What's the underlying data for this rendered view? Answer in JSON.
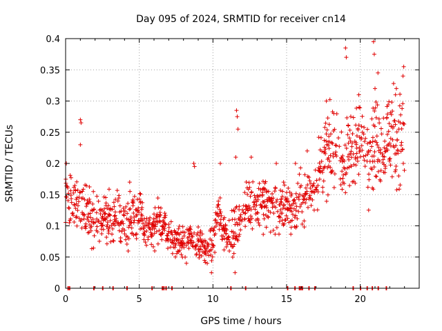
{
  "chart_data": {
    "type": "scatter",
    "title": "Day 095 of 2024, SRMTID for receiver cn14",
    "xlabel": "GPS time / hours",
    "ylabel": "SRMTID / TECUs",
    "xlim": [
      0,
      24
    ],
    "ylim": [
      0,
      0.4
    ],
    "x_ticks": [
      0,
      5,
      10,
      15,
      20
    ],
    "x_tick_labels": [
      "0",
      "5",
      "10",
      "15",
      "20"
    ],
    "y_ticks": [
      0,
      0.05,
      0.1,
      0.15,
      0.2,
      0.25,
      0.3,
      0.35,
      0.4
    ],
    "y_tick_labels": [
      "0",
      "0.05",
      "0.1",
      "0.15",
      "0.2",
      "0.25",
      "0.3",
      "0.35",
      "0.4"
    ],
    "grid": true,
    "marker": "+",
    "color": "#e00000",
    "trend": [
      [
        0.0,
        0.16
      ],
      [
        0.5,
        0.14
      ],
      [
        1.0,
        0.13
      ],
      [
        1.5,
        0.12
      ],
      [
        2.0,
        0.11
      ],
      [
        2.5,
        0.11
      ],
      [
        3.0,
        0.11
      ],
      [
        3.5,
        0.115
      ],
      [
        4.0,
        0.105
      ],
      [
        4.5,
        0.12
      ],
      [
        5.0,
        0.12
      ],
      [
        5.5,
        0.09
      ],
      [
        6.0,
        0.095
      ],
      [
        6.5,
        0.11
      ],
      [
        7.0,
        0.085
      ],
      [
        7.5,
        0.075
      ],
      [
        8.0,
        0.08
      ],
      [
        8.5,
        0.075
      ],
      [
        9.0,
        0.07
      ],
      [
        9.5,
        0.06
      ],
      [
        10.0,
        0.07
      ],
      [
        10.3,
        0.12
      ],
      [
        10.7,
        0.1
      ],
      [
        11.2,
        0.08
      ],
      [
        11.7,
        0.1
      ],
      [
        12.0,
        0.12
      ],
      [
        12.5,
        0.14
      ],
      [
        13.0,
        0.135
      ],
      [
        13.5,
        0.14
      ],
      [
        14.0,
        0.13
      ],
      [
        14.5,
        0.12
      ],
      [
        15.0,
        0.14
      ],
      [
        15.5,
        0.12
      ],
      [
        16.0,
        0.14
      ],
      [
        16.5,
        0.15
      ],
      [
        17.0,
        0.17
      ],
      [
        17.5,
        0.21
      ],
      [
        18.0,
        0.22
      ],
      [
        18.5,
        0.21
      ],
      [
        19.0,
        0.2
      ],
      [
        19.5,
        0.23
      ],
      [
        20.0,
        0.23
      ],
      [
        20.5,
        0.22
      ],
      [
        21.0,
        0.24
      ],
      [
        21.5,
        0.23
      ],
      [
        22.0,
        0.25
      ],
      [
        22.5,
        0.24
      ],
      [
        23.0,
        0.24
      ]
    ],
    "outliers": [
      [
        1.0,
        0.27
      ],
      [
        1.05,
        0.265
      ],
      [
        1.0,
        0.23
      ],
      [
        4.35,
        0.17
      ],
      [
        8.7,
        0.2
      ],
      [
        8.75,
        0.195
      ],
      [
        10.5,
        0.2
      ],
      [
        11.6,
        0.285
      ],
      [
        11.65,
        0.275
      ],
      [
        11.7,
        0.255
      ],
      [
        11.55,
        0.21
      ],
      [
        11.5,
        0.025
      ],
      [
        19.0,
        0.385
      ],
      [
        19.05,
        0.37
      ],
      [
        20.9,
        0.395
      ],
      [
        20.95,
        0.375
      ],
      [
        21.2,
        0.345
      ],
      [
        21.0,
        0.32
      ],
      [
        22.45,
        0.32
      ],
      [
        22.95,
        0.355
      ],
      [
        22.9,
        0.34
      ],
      [
        18.2,
        0.28
      ],
      [
        17.7,
        0.3
      ],
      [
        19.9,
        0.31
      ],
      [
        12.6,
        0.21
      ],
      [
        14.3,
        0.2
      ],
      [
        15.6,
        0.2
      ],
      [
        16.4,
        0.22
      ],
      [
        9.9,
        0.025
      ],
      [
        8.2,
        0.04
      ],
      [
        0.05,
        0.2
      ]
    ],
    "zero_markers": [
      0.15,
      0.25,
      1.9,
      2.5,
      3.2,
      4.15,
      5.85,
      6.55,
      6.65,
      6.8,
      7.2,
      11.2,
      12.2,
      15.05,
      15.55,
      15.85,
      15.95,
      16.05,
      16.5,
      16.9,
      19.5,
      20.0,
      20.45,
      20.8,
      21.2,
      21.75
    ]
  }
}
